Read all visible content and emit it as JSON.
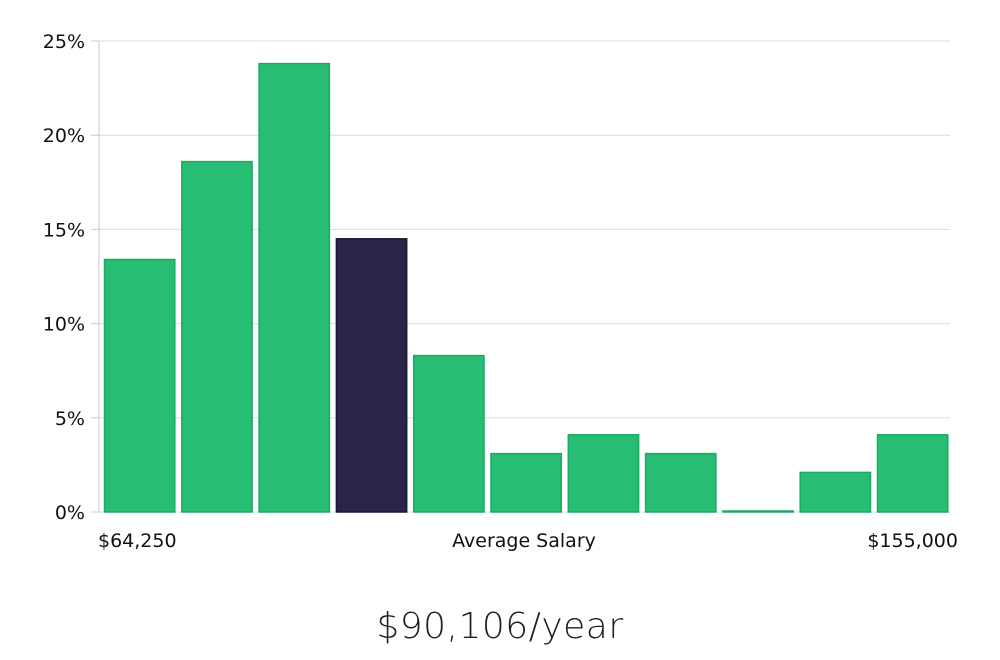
{
  "chart_data": {
    "type": "bar",
    "title": "",
    "xlabel": "Average Salary",
    "ylabel": "",
    "x_range_labels": {
      "min": "$64,250",
      "max": "$155,000"
    },
    "y_ticks": [
      "0%",
      "5%",
      "10%",
      "15%",
      "20%",
      "25%"
    ],
    "ylim": [
      0,
      25
    ],
    "grid": true,
    "values": [
      13.4,
      18.6,
      23.8,
      14.5,
      8.3,
      3.1,
      4.1,
      3.1,
      0.05,
      2.1,
      4.1
    ],
    "highlight_index": 3,
    "colors": {
      "bar": "#27bd75",
      "bar_border": "#1fa862",
      "highlight": "#282546",
      "grid": "#dcdcdc",
      "axis": "#c8c8c8"
    }
  },
  "summary": {
    "salary_text": "$90,106/year"
  }
}
